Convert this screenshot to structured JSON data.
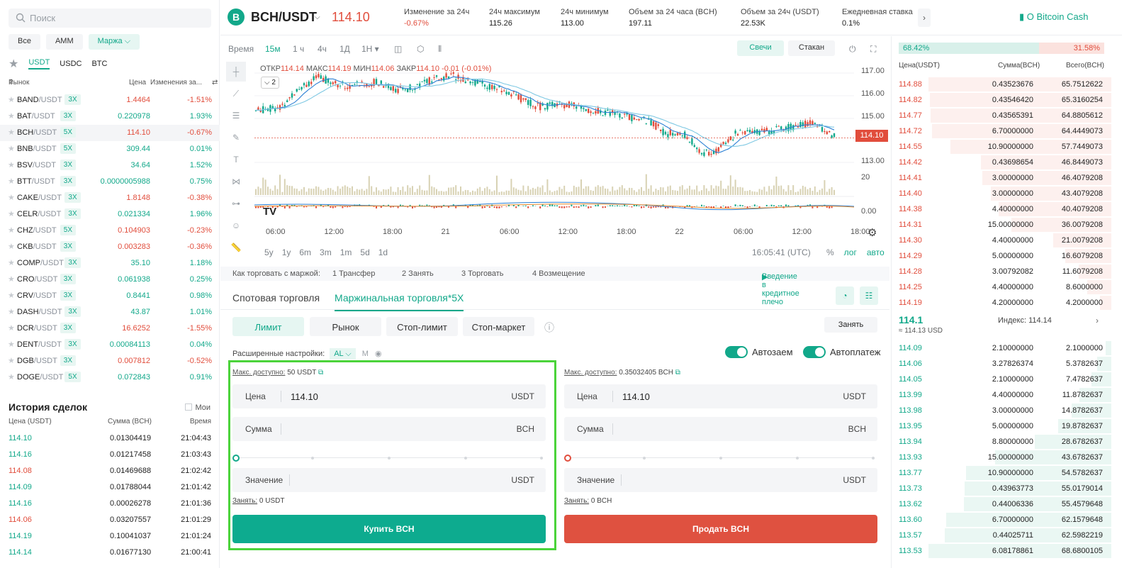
{
  "search_placeholder": "Поиск",
  "market_tabs": [
    "Все",
    "AMM",
    "Маржа"
  ],
  "quote_tabs": [
    "USDT",
    "USDC",
    "BTC"
  ],
  "market_headers": {
    "market": "Рынок",
    "price": "Цена",
    "change": "Изменения за..."
  },
  "markets": [
    {
      "base": "BAND",
      "quote": "/USDT",
      "lev": "3X",
      "price": "1.4464",
      "change": "-1.51%",
      "dir": "dn"
    },
    {
      "base": "BAT",
      "quote": "/USDT",
      "lev": "3X",
      "price": "0.220978",
      "change": "1.93%",
      "dir": "up"
    },
    {
      "base": "BCH",
      "quote": "/USDT",
      "lev": "5X",
      "price": "114.10",
      "change": "-0.67%",
      "dir": "dn",
      "sel": true
    },
    {
      "base": "BNB",
      "quote": "/USDT",
      "lev": "5X",
      "price": "309.44",
      "change": "0.01%",
      "dir": "up"
    },
    {
      "base": "BSV",
      "quote": "/USDT",
      "lev": "3X",
      "price": "34.64",
      "change": "1.52%",
      "dir": "up"
    },
    {
      "base": "BTT",
      "quote": "/USDT",
      "lev": "3X",
      "price": "0.0000005988",
      "change": "0.75%",
      "dir": "up"
    },
    {
      "base": "CAKE",
      "quote": "/USDT",
      "lev": "3X",
      "price": "1.8148",
      "change": "-0.38%",
      "dir": "dn"
    },
    {
      "base": "CELR",
      "quote": "/USDT",
      "lev": "3X",
      "price": "0.021334",
      "change": "1.96%",
      "dir": "up"
    },
    {
      "base": "CHZ",
      "quote": "/USDT",
      "lev": "5X",
      "price": "0.104903",
      "change": "-0.23%",
      "dir": "dn"
    },
    {
      "base": "CKB",
      "quote": "/USDT",
      "lev": "3X",
      "price": "0.003283",
      "change": "-0.36%",
      "dir": "dn"
    },
    {
      "base": "COMP",
      "quote": "/USDT",
      "lev": "3X",
      "price": "35.10",
      "change": "1.18%",
      "dir": "up"
    },
    {
      "base": "CRO",
      "quote": "/USDT",
      "lev": "3X",
      "price": "0.061938",
      "change": "0.25%",
      "dir": "up"
    },
    {
      "base": "CRV",
      "quote": "/USDT",
      "lev": "3X",
      "price": "0.8441",
      "change": "0.98%",
      "dir": "up"
    },
    {
      "base": "DASH",
      "quote": "/USDT",
      "lev": "3X",
      "price": "43.87",
      "change": "1.01%",
      "dir": "up"
    },
    {
      "base": "DCR",
      "quote": "/USDT",
      "lev": "3X",
      "price": "16.6252",
      "change": "-1.55%",
      "dir": "dn"
    },
    {
      "base": "DENT",
      "quote": "/USDT",
      "lev": "3X",
      "price": "0.00084113",
      "change": "0.04%",
      "dir": "up"
    },
    {
      "base": "DGB",
      "quote": "/USDT",
      "lev": "3X",
      "price": "0.007812",
      "change": "-0.52%",
      "dir": "dn"
    },
    {
      "base": "DOGE",
      "quote": "/USDT",
      "lev": "5X",
      "price": "0.072843",
      "change": "0.91%",
      "dir": "up"
    }
  ],
  "history": {
    "title": "История сделок",
    "mine": "Мои",
    "headers": [
      "Цена (USDT)",
      "Сумма (BCH)",
      "Время"
    ],
    "rows": [
      {
        "p": "114.10",
        "a": "0.01304419",
        "t": "21:04:43",
        "dir": "up"
      },
      {
        "p": "114.16",
        "a": "0.01217458",
        "t": "21:03:43",
        "dir": "up"
      },
      {
        "p": "114.08",
        "a": "0.01469688",
        "t": "21:02:42",
        "dir": "dn"
      },
      {
        "p": "114.09",
        "a": "0.01788044",
        "t": "21:01:42",
        "dir": "up"
      },
      {
        "p": "114.16",
        "a": "0.00026278",
        "t": "21:01:36",
        "dir": "up"
      },
      {
        "p": "114.06",
        "a": "0.03207557",
        "t": "21:01:29",
        "dir": "dn"
      },
      {
        "p": "114.19",
        "a": "0.10041037",
        "t": "21:01:24",
        "dir": "up"
      },
      {
        "p": "114.14",
        "a": "0.01677130",
        "t": "21:00:41",
        "dir": "up"
      }
    ]
  },
  "header": {
    "coin_letter": "B",
    "pair": "BCH/USDT",
    "price": "114.10",
    "stats": [
      {
        "label": "Изменение за 24ч",
        "value": "-0.67%",
        "dir": "dn"
      },
      {
        "label": "24ч максимум",
        "value": "115.26"
      },
      {
        "label": "24ч минимум",
        "value": "113.00"
      },
      {
        "label": "Объем за 24 часа  (BCH)",
        "value": "197.11"
      },
      {
        "label": "Объем за 24ч  (USDT)",
        "value": "22.53K"
      },
      {
        "label": "Ежедневная ставка",
        "value": "0.1%"
      }
    ],
    "info": "О Bitcoin Cash"
  },
  "chart": {
    "timeframes": [
      "Время",
      "15м",
      "1 ч",
      "4ч",
      "1Д",
      "1Н"
    ],
    "active_tf": "15м",
    "toggles": [
      "Свечи",
      "Стакан"
    ],
    "ohlc": {
      "o_label": "ОТКР",
      "o": "114.14",
      "h_label": "МАКС",
      "h": "114.19",
      "l_label": "МИН",
      "l": "114.06",
      "c_label": "ЗАКР",
      "c": "114.10",
      "chg": "-0.01 (-0.01%)"
    },
    "indicator_count": "2",
    "price_label": "114.10",
    "y_ticks": [
      "117.00",
      "116.00",
      "115.00",
      "113.00"
    ],
    "vol_tick": "20",
    "macd_tick": "0.00",
    "x_ticks": [
      "06:00",
      "12:00",
      "18:00",
      "21",
      "06:00",
      "12:00",
      "18:00",
      "22",
      "06:00",
      "12:00",
      "18:00"
    ],
    "ranges": [
      "5y",
      "1y",
      "6m",
      "3m",
      "1m",
      "5d",
      "1d"
    ],
    "clock": "16:05:41 (UTC)",
    "scales": [
      "%",
      "лог",
      "авто"
    ]
  },
  "steps": {
    "label": "Как торговать с маржой:",
    "items": [
      "1  Трансфер",
      "2  Занять",
      "3  Торговать",
      "4  Возмещение"
    ],
    "link": "Введение в кредитное плечо"
  },
  "trade": {
    "tabs": [
      "Спотовая торговля",
      "Маржинальная торговля*5X"
    ],
    "order_types": [
      "Лимит",
      "Рынок",
      "Стоп-лимит",
      "Стоп-маркет"
    ],
    "borrow": "Занять",
    "adv_label": "Расширенные настройки:",
    "adv_al": "AL",
    "adv_m": "M",
    "auto_loan": "Автозаем",
    "auto_repay": "Автоплатеж",
    "buy": {
      "avail_label": "Макс. доступно:",
      "avail": "50 USDT",
      "price_label": "Цена",
      "price": "114.10",
      "price_unit": "USDT",
      "amount_label": "Сумма",
      "amount_unit": "BCH",
      "total_label": "Значение",
      "total_unit": "USDT",
      "loan_label": "Занять:",
      "loan": "0 USDT",
      "button": "Купить BCH"
    },
    "sell": {
      "avail_label": "Макс. доступно:",
      "avail": "0.35032405 BCH",
      "price_label": "Цена",
      "price": "114.10",
      "price_unit": "USDT",
      "amount_label": "Сумма",
      "amount_unit": "BCH",
      "total_label": "Значение",
      "total_unit": "USDT",
      "loan_label": "Занять:",
      "loan": "0 BCH",
      "button": "Продать BCH"
    }
  },
  "book": {
    "buy_ratio": "68.42%",
    "sell_ratio": "31.58%",
    "headers": [
      "Цена(USDT)",
      "Сумма(BCH)",
      "Всего(BCH)"
    ],
    "asks": [
      {
        "p": "114.88",
        "a": "0.43523676",
        "t": "65.7512622"
      },
      {
        "p": "114.82",
        "a": "0.43546420",
        "t": "65.3160254"
      },
      {
        "p": "114.77",
        "a": "0.43565391",
        "t": "64.8805612"
      },
      {
        "p": "114.72",
        "a": "6.70000000",
        "t": "64.4449073"
      },
      {
        "p": "114.55",
        "a": "10.90000000",
        "t": "57.7449073"
      },
      {
        "p": "114.42",
        "a": "0.43698654",
        "t": "46.8449073"
      },
      {
        "p": "114.41",
        "a": "3.00000000",
        "t": "46.4079208"
      },
      {
        "p": "114.40",
        "a": "3.00000000",
        "t": "43.4079208"
      },
      {
        "p": "114.38",
        "a": "4.40000000",
        "t": "40.4079208"
      },
      {
        "p": "114.31",
        "a": "15.00000000",
        "t": "36.0079208"
      },
      {
        "p": "114.30",
        "a": "4.40000000",
        "t": "21.0079208"
      },
      {
        "p": "114.29",
        "a": "5.00000000",
        "t": "16.6079208"
      },
      {
        "p": "114.28",
        "a": "3.00792082",
        "t": "11.6079208"
      },
      {
        "p": "114.25",
        "a": "4.40000000",
        "t": "8.6000000"
      },
      {
        "p": "114.19",
        "a": "4.20000000",
        "t": "4.2000000"
      }
    ],
    "mid_price": "114.1",
    "mid_usd": "≈ 114.13 USD",
    "index_label": "Индекс:",
    "index": "114.14",
    "bids": [
      {
        "p": "114.09",
        "a": "2.10000000",
        "t": "2.1000000"
      },
      {
        "p": "114.06",
        "a": "3.27826374",
        "t": "5.3782637"
      },
      {
        "p": "114.05",
        "a": "2.10000000",
        "t": "7.4782637"
      },
      {
        "p": "113.99",
        "a": "4.40000000",
        "t": "11.8782637"
      },
      {
        "p": "113.98",
        "a": "3.00000000",
        "t": "14.8782637"
      },
      {
        "p": "113.95",
        "a": "5.00000000",
        "t": "19.8782637"
      },
      {
        "p": "113.94",
        "a": "8.80000000",
        "t": "28.6782637"
      },
      {
        "p": "113.93",
        "a": "15.00000000",
        "t": "43.6782637"
      },
      {
        "p": "113.77",
        "a": "10.90000000",
        "t": "54.5782637"
      },
      {
        "p": "113.73",
        "a": "0.43963773",
        "t": "55.0179014"
      },
      {
        "p": "113.62",
        "a": "0.44006336",
        "t": "55.4579648"
      },
      {
        "p": "113.60",
        "a": "6.70000000",
        "t": "62.1579648"
      },
      {
        "p": "113.57",
        "a": "0.44025711",
        "t": "62.5982219"
      },
      {
        "p": "113.53",
        "a": "6.08178861",
        "t": "68.6800105"
      }
    ]
  },
  "colors": {
    "up": "#12a88a",
    "down": "#e14d3c",
    "highlight": "#4bd33a"
  }
}
